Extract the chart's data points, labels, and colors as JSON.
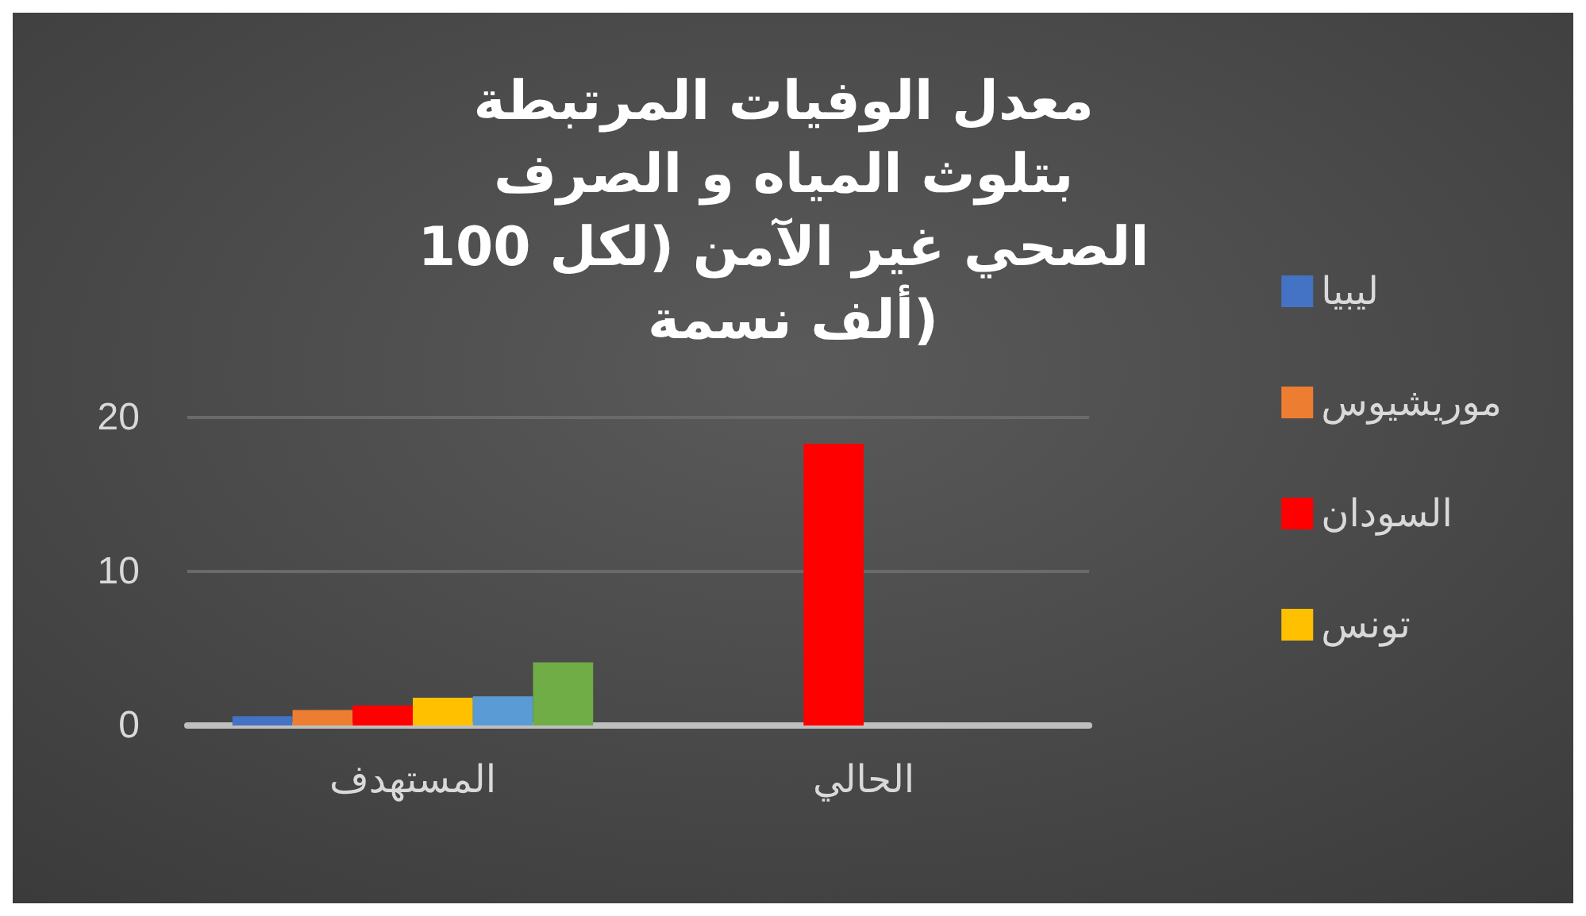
{
  "chart_data": {
    "type": "bar",
    "title": "معدل الوفيات المرتبطة بتلوث المياه و الصرف الصحي غير الآمن (لكل 100 ألف نسمة)",
    "categories": [
      "المستهدف",
      "الحالي"
    ],
    "series": [
      {
        "name": "ليبيا",
        "color": "#4472c4",
        "values": [
          0.6,
          null
        ]
      },
      {
        "name": "موريشيوس",
        "color": "#ed7d31",
        "values": [
          1.0,
          null
        ]
      },
      {
        "name": "السودان",
        "color": "#ff0000",
        "values": [
          1.3,
          18.3
        ]
      },
      {
        "name": "تونس",
        "color": "#ffc000",
        "values": [
          1.8,
          null
        ]
      },
      {
        "color": "#5b9bd5",
        "values": [
          1.9,
          null
        ]
      },
      {
        "color": "#70ad47",
        "values": [
          4.1,
          null
        ]
      }
    ],
    "ylim": [
      0,
      20
    ],
    "yticks": [
      0,
      10,
      20
    ],
    "grid": "y",
    "legend": "right"
  }
}
